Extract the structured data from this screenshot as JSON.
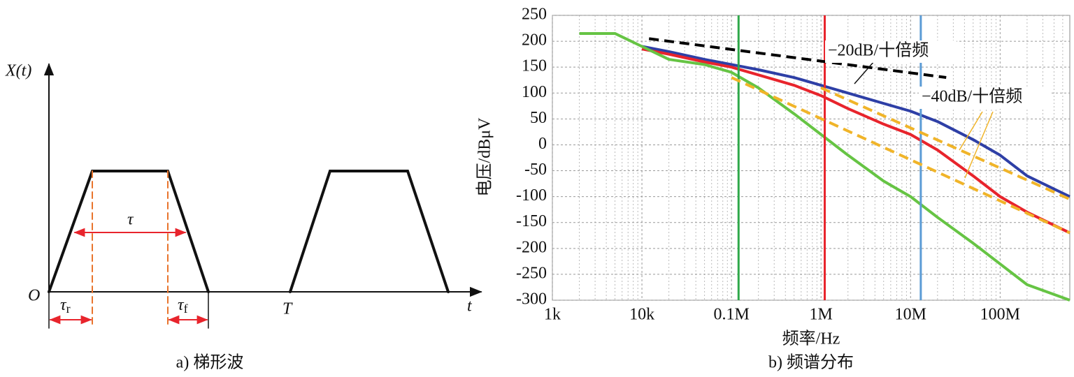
{
  "diagram": {
    "y_axis_label": "X(t)",
    "origin": "O",
    "pulse_width": "τ",
    "rise_time": {
      "symbol": "τ",
      "subscript": "r"
    },
    "fall_time": {
      "symbol": "τ",
      "subscript": "f"
    },
    "period": "T",
    "time_axis": "t",
    "caption": "a) 梯形波"
  },
  "chart_data": {
    "type": "line",
    "xlabel": "频率/Hz",
    "ylabel": "电压/dBμV",
    "caption": "b) 频谱分布",
    "xscale": "log",
    "xlim": [
      1000,
      600000000
    ],
    "xticks": [
      {
        "value": 1000,
        "label": "1k"
      },
      {
        "value": 10000,
        "label": "10k"
      },
      {
        "value": 100000,
        "label": "0.1M"
      },
      {
        "value": 1000000,
        "label": "1M"
      },
      {
        "value": 10000000,
        "label": "10M"
      },
      {
        "value": 100000000,
        "label": "100M"
      }
    ],
    "ylim": [
      -300,
      250
    ],
    "yticks": [
      -300,
      -250,
      -200,
      -150,
      -100,
      -50,
      0,
      50,
      100,
      150,
      200,
      250
    ],
    "grid": true,
    "x": [
      2000,
      5000,
      10000,
      20000,
      50000,
      100000,
      200000,
      500000,
      1000000,
      2000000,
      5000000,
      10000000,
      20000000,
      50000000,
      100000000,
      200000000,
      600000000
    ],
    "series": [
      {
        "color": "#2e3fa6",
        "values": [
          null,
          null,
          190,
          180,
          165,
          155,
          145,
          130,
          115,
          100,
          80,
          65,
          45,
          10,
          -20,
          -60,
          -100
        ]
      },
      {
        "color": "#e8242c",
        "values": [
          null,
          null,
          185,
          175,
          160,
          150,
          135,
          115,
          95,
          70,
          40,
          20,
          -10,
          -60,
          -100,
          -130,
          -170
        ]
      },
      {
        "color": "#66c444",
        "values": [
          215,
          215,
          190,
          165,
          155,
          140,
          110,
          60,
          20,
          -20,
          -70,
          -100,
          -140,
          -190,
          -230,
          -270,
          -300
        ]
      }
    ],
    "vlines": [
      {
        "x": 120000,
        "color": "#2fa84a"
      },
      {
        "x": 1100000,
        "color": "#e8242c"
      },
      {
        "x": 13000000,
        "color": "#5b9bd5"
      }
    ],
    "reference_lines": [
      {
        "x": [
          12000,
          25000000
        ],
        "values": [
          205,
          130
        ],
        "color": "#000000"
      },
      {
        "x": [
          1000000,
          600000000
        ],
        "values": [
          110,
          -105
        ],
        "color": "#f0b429"
      },
      {
        "x": [
          100000,
          600000000
        ],
        "values": [
          130,
          -170
        ],
        "color": "#f0b429"
      }
    ],
    "annotations": [
      "−20dB/十倍频",
      "−40dB/十倍频"
    ]
  }
}
